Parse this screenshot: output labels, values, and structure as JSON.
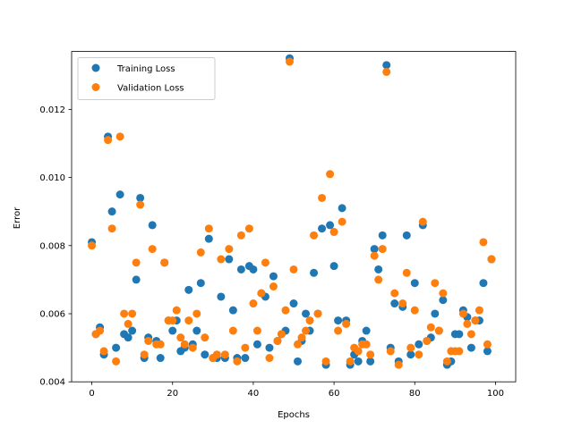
{
  "chart_data": {
    "type": "scatter",
    "title": "",
    "xlabel": "Epochs",
    "ylabel": "Error",
    "xlim": [
      -5,
      105
    ],
    "ylim": [
      0.004,
      0.0137
    ],
    "x_ticks": [
      0,
      20,
      40,
      60,
      80,
      100
    ],
    "x_tick_labels": [
      "0",
      "20",
      "40",
      "60",
      "80",
      "100"
    ],
    "y_ticks": [
      0.004,
      0.006,
      0.008,
      0.01,
      0.012
    ],
    "y_tick_labels": [
      "0.004",
      "0.006",
      "0.008",
      "0.010",
      "0.012"
    ],
    "grid": false,
    "legend_position": "top-left",
    "series": [
      {
        "name": "Training Loss",
        "color": "#1f77b4",
        "x": [
          0,
          1,
          2,
          3,
          4,
          5,
          6,
          7,
          8,
          9,
          10,
          11,
          12,
          13,
          14,
          15,
          16,
          17,
          18,
          19,
          20,
          21,
          22,
          23,
          24,
          25,
          26,
          27,
          28,
          29,
          30,
          31,
          32,
          33,
          34,
          35,
          36,
          37,
          38,
          39,
          40,
          41,
          42,
          43,
          44,
          45,
          46,
          47,
          48,
          49,
          50,
          51,
          52,
          53,
          54,
          55,
          56,
          57,
          58,
          59,
          60,
          61,
          62,
          63,
          64,
          65,
          66,
          67,
          68,
          69,
          70,
          71,
          72,
          73,
          74,
          75,
          76,
          77,
          78,
          79,
          80,
          81,
          82,
          83,
          84,
          85,
          86,
          87,
          88,
          89,
          90,
          91,
          92,
          93,
          94,
          95,
          96,
          97,
          98,
          99
        ],
        "y": [
          0.0081,
          0.0054,
          0.0056,
          0.0048,
          0.0112,
          0.009,
          0.005,
          0.0095,
          0.0054,
          0.0053,
          0.0055,
          0.007,
          0.0094,
          0.0047,
          0.0053,
          0.0086,
          0.0052,
          0.0047,
          0.0075,
          0.0058,
          0.0055,
          0.0058,
          0.0049,
          0.005,
          0.0067,
          0.0051,
          0.0055,
          0.0069,
          0.0048,
          0.0082,
          0.0047,
          0.0047,
          0.0065,
          0.0047,
          0.0076,
          0.0061,
          0.0047,
          0.0073,
          0.0047,
          0.0074,
          0.0073,
          0.0051,
          0.0066,
          0.0065,
          0.005,
          0.0071,
          0.0052,
          0.0054,
          0.0055,
          0.0135,
          0.0063,
          0.0046,
          0.0052,
          0.006,
          0.0055,
          0.0072,
          0.006,
          0.0085,
          0.0045,
          0.0086,
          0.0074,
          0.0058,
          0.0091,
          0.0058,
          0.0045,
          0.0048,
          0.0046,
          0.0052,
          0.0055,
          0.0046,
          0.0079,
          0.0073,
          0.0083,
          0.0133,
          0.005,
          0.0063,
          0.0046,
          0.0062,
          0.0083,
          0.0048,
          0.0069,
          0.0051,
          0.0086,
          0.0052,
          0.0053,
          0.006,
          0.0055,
          0.0064,
          0.0045,
          0.0046,
          0.0054,
          0.0054,
          0.0061,
          0.0059,
          0.005,
          0.0058,
          0.0058,
          0.0069,
          0.0049,
          0.0076
        ]
      },
      {
        "name": "Validation Loss",
        "color": "#ff7f0e",
        "x": [
          0,
          1,
          2,
          3,
          4,
          5,
          6,
          7,
          8,
          9,
          10,
          11,
          12,
          13,
          14,
          15,
          16,
          17,
          18,
          19,
          20,
          21,
          22,
          23,
          24,
          25,
          26,
          27,
          28,
          29,
          30,
          31,
          32,
          33,
          34,
          35,
          36,
          37,
          38,
          39,
          40,
          41,
          42,
          43,
          44,
          45,
          46,
          47,
          48,
          49,
          50,
          51,
          52,
          53,
          54,
          55,
          56,
          57,
          58,
          59,
          60,
          61,
          62,
          63,
          64,
          65,
          66,
          67,
          68,
          69,
          70,
          71,
          72,
          73,
          74,
          75,
          76,
          77,
          78,
          79,
          80,
          81,
          82,
          83,
          84,
          85,
          86,
          87,
          88,
          89,
          90,
          91,
          92,
          93,
          94,
          95,
          96,
          97,
          98,
          99
        ],
        "y": [
          0.008,
          0.0054,
          0.0055,
          0.0049,
          0.0111,
          0.0085,
          0.0046,
          0.0112,
          0.006,
          0.0057,
          0.006,
          0.0075,
          0.0092,
          0.0048,
          0.0052,
          0.0079,
          0.0051,
          0.0051,
          0.0075,
          0.0058,
          0.0058,
          0.0061,
          0.0053,
          0.0051,
          0.0058,
          0.005,
          0.006,
          0.0078,
          0.0053,
          0.0085,
          0.0047,
          0.0048,
          0.0076,
          0.0048,
          0.0079,
          0.0055,
          0.0046,
          0.0083,
          0.005,
          0.0085,
          0.0063,
          0.0055,
          0.0066,
          0.0075,
          0.0047,
          0.0068,
          0.0052,
          0.0054,
          0.0061,
          0.0134,
          0.0073,
          0.0051,
          0.0053,
          0.0055,
          0.0058,
          0.0083,
          0.006,
          0.0094,
          0.0046,
          0.0101,
          0.0084,
          0.0055,
          0.0087,
          0.0057,
          0.0046,
          0.005,
          0.0049,
          0.0051,
          0.0051,
          0.0048,
          0.0077,
          0.007,
          0.0079,
          0.0131,
          0.0049,
          0.0066,
          0.0045,
          0.0063,
          0.0072,
          0.005,
          0.0061,
          0.0048,
          0.0087,
          0.0052,
          0.0056,
          0.0069,
          0.0055,
          0.0066,
          0.0046,
          0.0049,
          0.0049,
          0.0049,
          0.006,
          0.0057,
          0.0054,
          0.0058,
          0.0061,
          0.0081,
          0.0051,
          0.0076
        ]
      }
    ]
  }
}
